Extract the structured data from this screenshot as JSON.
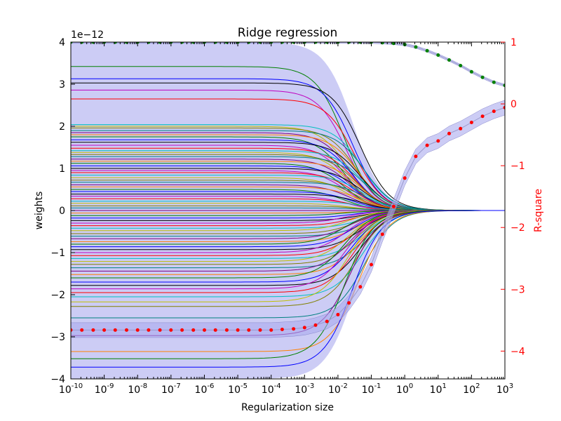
{
  "chart_data": {
    "type": "line",
    "title": "Ridge regression",
    "xlabel": "Regularization size",
    "ylabel": "weights",
    "y2label": "R-square",
    "x_scale": "log",
    "xlim": [
      1e-10,
      1000
    ],
    "ylim": [
      -4e-12,
      4e-12
    ],
    "y_offset_label": "1e−12",
    "y2lim": [
      -4.45,
      1.0
    ],
    "y2_color": "#ff0000",
    "x_tick_exponents": [
      "-10",
      "-9",
      "-8",
      "-7",
      "-6",
      "-5",
      "-4",
      "-3",
      "-2",
      "-1",
      "0",
      "1",
      "2",
      "3"
    ],
    "x_tick_base": "10",
    "y_tick_values": [
      4,
      3,
      2,
      1,
      0,
      -1,
      -2,
      -3,
      -4
    ],
    "y_tick_labels": [
      "4",
      "3",
      "2",
      "1",
      "0",
      "−1",
      "−2",
      "−3",
      "−4"
    ],
    "y2_tick_values": [
      1,
      0,
      -1,
      -2,
      -3,
      -4
    ],
    "y2_tick_labels": [
      "1",
      "0",
      "−1",
      "−2",
      "−3",
      "−4"
    ],
    "grid": false,
    "legend": "none",
    "weight_paths": {
      "description_of_shape": "each coefficient path is constant for small regularization and shrinks smoothly toward 0 between 1e-2 and 1e3",
      "initial_values_1e-12": [
        3.42,
        3.13,
        3.03,
        2.86,
        2.65,
        2.04,
        2.0,
        1.96,
        1.9,
        1.85,
        1.8,
        1.75,
        1.68,
        1.62,
        1.55,
        1.48,
        1.42,
        1.38,
        1.33,
        1.28,
        1.22,
        1.17,
        1.12,
        1.06,
        1.0,
        0.95,
        0.9,
        0.84,
        0.78,
        0.72,
        0.67,
        0.61,
        0.56,
        0.5,
        0.45,
        0.39,
        0.34,
        0.28,
        0.22,
        0.17,
        0.11,
        0.06,
        0.0,
        -0.06,
        -0.12,
        -0.18,
        -0.24,
        -0.3,
        -0.36,
        -0.42,
        -0.48,
        -0.55,
        -0.61,
        -0.67,
        -0.74,
        -0.8,
        -0.86,
        -0.93,
        -1.0,
        -1.07,
        -1.14,
        -1.21,
        -1.28,
        -1.36,
        -1.44,
        -1.52,
        -1.6,
        -1.7,
        -1.78,
        -1.86,
        -1.95,
        -2.05,
        -2.17,
        -2.28,
        -2.55,
        -2.97,
        -3.35,
        -3.52,
        -3.72
      ],
      "colors": [
        "#008000",
        "#0000ff",
        "#000000",
        "#bf00bf",
        "#ff0000",
        "#00bfbf",
        "#bfbf00",
        "#808000",
        "#008080",
        "#800080",
        "#ff8000"
      ]
    },
    "weight_band": {
      "fill": "#aaaaee",
      "upper_1e-12": 4.0,
      "lower_1e-12": -4.0
    },
    "r_square_test": {
      "name": "",
      "color": "#ff0000",
      "marker": "dot",
      "x_exp": [
        -10,
        -9.67,
        -9.33,
        -9,
        -8.67,
        -8.33,
        -8,
        -7.67,
        -7.33,
        -7,
        -6.67,
        -6.33,
        -6,
        -5.67,
        -5.33,
        -5,
        -4.67,
        -4.33,
        -4,
        -3.67,
        -3.33,
        -3,
        -2.67,
        -2.33,
        -2,
        -1.67,
        -1.33,
        -1,
        -0.67,
        -0.33,
        0,
        0.33,
        0.67,
        1,
        1.33,
        1.67,
        2,
        2.33,
        2.67,
        3
      ],
      "values": [
        -3.66,
        -3.66,
        -3.66,
        -3.66,
        -3.66,
        -3.66,
        -3.66,
        -3.66,
        -3.66,
        -3.66,
        -3.66,
        -3.66,
        -3.66,
        -3.66,
        -3.66,
        -3.66,
        -3.66,
        -3.66,
        -3.66,
        -3.65,
        -3.64,
        -3.62,
        -3.58,
        -3.52,
        -3.41,
        -3.22,
        -2.96,
        -2.6,
        -2.11,
        -1.66,
        -1.2,
        -0.85,
        -0.67,
        -0.6,
        -0.48,
        -0.4,
        -0.3,
        -0.2,
        -0.12,
        -0.06
      ],
      "band": 0.12
    },
    "r_square_train": {
      "name": "",
      "color": "#008000",
      "marker": "dot",
      "x_exp": [
        -10,
        -9.67,
        -9.33,
        -9,
        -8.67,
        -8.33,
        -8,
        -7.67,
        -7.33,
        -7,
        -6.67,
        -6.33,
        -6,
        -5.67,
        -5.33,
        -5,
        -4.67,
        -4.33,
        -4,
        -3.67,
        -3.33,
        -3,
        -2.67,
        -2.33,
        -2,
        -1.67,
        -1.33,
        -1,
        -0.67,
        -0.33,
        0,
        0.33,
        0.67,
        1,
        1.33,
        1.67,
        2,
        2.33,
        2.67,
        3
      ],
      "values": [
        1.0,
        1.0,
        1.0,
        1.0,
        1.0,
        1.0,
        1.0,
        1.0,
        1.0,
        1.0,
        1.0,
        1.0,
        1.0,
        1.0,
        1.0,
        1.0,
        1.0,
        1.0,
        1.0,
        1.0,
        1.0,
        1.0,
        1.0,
        1.0,
        1.0,
        1.0,
        1.0,
        1.0,
        0.99,
        0.98,
        0.96,
        0.92,
        0.86,
        0.79,
        0.71,
        0.62,
        0.52,
        0.43,
        0.35,
        0.3
      ],
      "band": 0.02
    }
  }
}
